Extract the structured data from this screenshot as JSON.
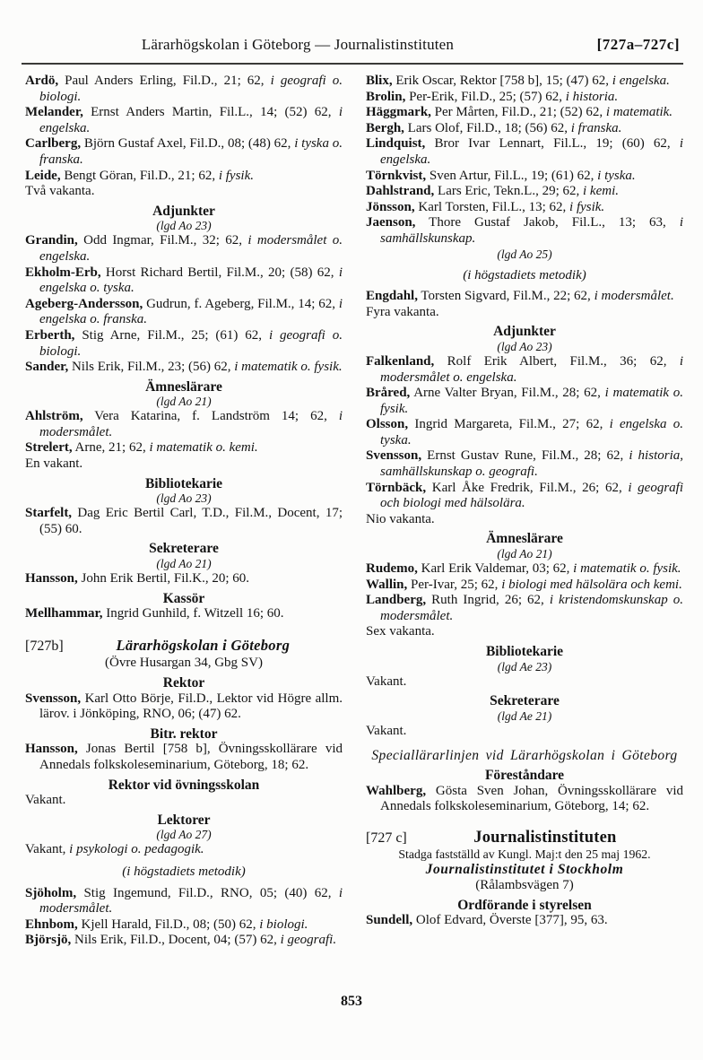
{
  "page": {
    "header": {
      "title": "Lärarhögskolan i Göteborg — Journalistinstituten",
      "ref": "[727a–727c]"
    },
    "page_number": "853"
  },
  "columns": {
    "left": [
      {
        "type": "entry",
        "name": "Ardö,",
        "detail": " Paul Anders Erling, Fil.D., 21; 62, ",
        "subject": "i geografi o. biologi."
      },
      {
        "type": "entry",
        "name": "Melander,",
        "detail": " Ernst Anders Martin, Fil.L., 14; (52) 62, ",
        "subject": "i engelska."
      },
      {
        "type": "entry",
        "name": "Carlberg,",
        "detail": " Björn Gustaf Axel, Fil.D., 08; (48) 62, ",
        "subject": "i tyska o. franska."
      },
      {
        "type": "entry",
        "name": "Leide,",
        "detail": " Bengt Göran, Fil.D., 21; 62, ",
        "subject": "i fysik."
      },
      {
        "type": "plain",
        "text": "Två vakanta."
      },
      {
        "type": "heading",
        "text": "Adjunkter"
      },
      {
        "type": "subheading",
        "text": "(lgd Ao 23)"
      },
      {
        "type": "entry",
        "name": "Grandin,",
        "detail": " Odd Ingmar, Fil.M., 32; 62, ",
        "subject": "i modersmålet o. engelska."
      },
      {
        "type": "entry",
        "name": "Ekholm-Erb,",
        "detail": " Horst Richard Bertil, Fil.M., 20; (58) 62, ",
        "subject": "i engelska o. tyska."
      },
      {
        "type": "entry",
        "name": "Ageberg-Andersson,",
        "detail": " Gudrun, f. Ageberg, Fil.M., 14; 62, ",
        "subject": "i engelska o. franska."
      },
      {
        "type": "entry",
        "name": "Erberth,",
        "detail": " Stig Arne, Fil.M., 25; (61) 62, ",
        "subject": "i geografi o. biologi."
      },
      {
        "type": "entry",
        "name": "Sander,",
        "detail": " Nils Erik, Fil.M., 23; (56) 62, ",
        "subject": "i matematik o. fysik."
      },
      {
        "type": "heading",
        "text": "Ämneslärare"
      },
      {
        "type": "subheading",
        "text": "(lgd Ao 21)"
      },
      {
        "type": "entry",
        "name": "Ahlström,",
        "detail": " Vera Katarina, f. Landström 14; 62, ",
        "subject": "i modersmålet."
      },
      {
        "type": "entry",
        "name": "Strelert,",
        "detail": " Arne, 21; 62, ",
        "subject": "i matematik o. kemi."
      },
      {
        "type": "plain",
        "text": "En vakant."
      },
      {
        "type": "heading",
        "text": "Bibliotekarie"
      },
      {
        "type": "subheading",
        "text": "(lgd Ao 23)"
      },
      {
        "type": "entry",
        "name": "Starfelt,",
        "detail": " Dag Eric Bertil Carl, T.D., Fil.M., Docent, 17; (55) 60.",
        "subject": ""
      },
      {
        "type": "heading",
        "text": "Sekreterare"
      },
      {
        "type": "subheading",
        "text": "(lgd Ao 21)"
      },
      {
        "type": "entry",
        "name": "Hansson,",
        "detail": " John Erik Bertil, Fil.K., 20; 60.",
        "subject": ""
      },
      {
        "type": "heading",
        "text": "Kassör"
      },
      {
        "type": "entry",
        "name": "Mellhammar,",
        "detail": " Ingrid Gunhild, f. Witzell 16; 60.",
        "subject": ""
      },
      {
        "type": "section",
        "ref": "[727b]",
        "title": "Lärarhögskolan i Göteborg",
        "style": "italic"
      },
      {
        "type": "center",
        "text": "(Övre Husargan 34, Gbg SV)"
      },
      {
        "type": "heading",
        "text": "Rektor"
      },
      {
        "type": "entry",
        "name": "Svensson,",
        "detail": " Karl Otto Börje, Fil.D., Lektor vid Högre allm. lärov. i Jönköping, RNO, 06; (47) 62.",
        "subject": ""
      },
      {
        "type": "heading",
        "text": "Bitr. rektor"
      },
      {
        "type": "entry",
        "name": "Hansson,",
        "detail": " Jonas Bertil [758 b], Övningsskollärare vid Annedals folkskoleseminarium, Göteborg, 18; 62.",
        "subject": ""
      },
      {
        "type": "heading",
        "text": "Rektor vid övningsskolan"
      },
      {
        "type": "plain",
        "text": "Vakant."
      },
      {
        "type": "heading",
        "text": "Lektorer"
      },
      {
        "type": "subheading",
        "text": "(lgd Ao 27)"
      },
      {
        "type": "entry",
        "name": "",
        "detail": "Vakant, ",
        "subject": "i psykologi o. pedagogik."
      },
      {
        "type": "center-italic",
        "text": "(i högstadiets metodik)"
      },
      {
        "type": "entry",
        "name": "Sjöholm,",
        "detail": " Stig Ingemund, Fil.D., RNO, 05; (40) 62, ",
        "subject": "i modersmålet."
      },
      {
        "type": "entry",
        "name": "Ehnbom,",
        "detail": " Kjell Harald, Fil.D., 08; (50) 62, ",
        "subject": "i biologi."
      },
      {
        "type": "entry",
        "name": "Björsjö,",
        "detail": " Nils Erik, Fil.D., Docent, 04; (57) 62, ",
        "subject": "i geografi."
      }
    ],
    "right": [
      {
        "type": "entry",
        "name": "Blix,",
        "detail": " Erik Oscar, Rektor [758 b], 15; (47) 62, ",
        "subject": "i engelska."
      },
      {
        "type": "entry",
        "name": "Brolin,",
        "detail": " Per-Erik, Fil.D., 25; (57) 62, ",
        "subject": "i historia."
      },
      {
        "type": "entry",
        "name": "Häggmark,",
        "detail": " Per Mårten, Fil.D., 21; (52) 62, ",
        "subject": "i matematik."
      },
      {
        "type": "entry",
        "name": "Bergh,",
        "detail": " Lars Olof, Fil.D., 18; (56) 62, ",
        "subject": "i franska."
      },
      {
        "type": "entry",
        "name": "Lindquist,",
        "detail": " Bror Ivar Lennart, Fil.L., 19; (60) 62, ",
        "subject": "i engelska."
      },
      {
        "type": "entry",
        "name": "Törnkvist,",
        "detail": " Sven Artur, Fil.L., 19; (61) 62, ",
        "subject": "i tyska."
      },
      {
        "type": "entry",
        "name": "Dahlstrand,",
        "detail": " Lars Eric, Tekn.L., 29; 62, ",
        "subject": "i kemi."
      },
      {
        "type": "entry",
        "name": "Jönsson,",
        "detail": " Karl Torsten, Fil.L., 13; 62, ",
        "subject": "i fysik."
      },
      {
        "type": "entry",
        "name": "Jaenson,",
        "detail": " Thore Gustaf Jakob, Fil.L., 13; 63, ",
        "subject": "i samhällskunskap."
      },
      {
        "type": "subheading",
        "text": "(lgd Ao 25)"
      },
      {
        "type": "center-italic",
        "text": "(i högstadiets metodik)"
      },
      {
        "type": "entry",
        "name": "Engdahl,",
        "detail": " Torsten Sigvard, Fil.M., 22; 62, ",
        "subject": "i modersmålet."
      },
      {
        "type": "plain",
        "text": "Fyra vakanta."
      },
      {
        "type": "heading",
        "text": "Adjunkter"
      },
      {
        "type": "subheading",
        "text": "(lgd Ao 23)"
      },
      {
        "type": "entry",
        "name": "Falkenland,",
        "detail": " Rolf Erik Albert, Fil.M., 36; 62, ",
        "subject": "i modersmålet o. engelska."
      },
      {
        "type": "entry",
        "name": "Bråred,",
        "detail": " Arne Valter Bryan, Fil.M., 28; 62, ",
        "subject": "i matematik o. fysik."
      },
      {
        "type": "entry",
        "name": "Olsson,",
        "detail": " Ingrid Margareta, Fil.M., 27; 62, ",
        "subject": "i engelska o. tyska."
      },
      {
        "type": "entry",
        "name": "Svensson,",
        "detail": " Ernst Gustav Rune, Fil.M., 28; 62, ",
        "subject": "i historia, samhällskunskap o. geografi."
      },
      {
        "type": "entry",
        "name": "Törnbäck,",
        "detail": " Karl Åke Fredrik, Fil.M., 26; 62, ",
        "subject": "i geografi och biologi med hälsolära."
      },
      {
        "type": "plain",
        "text": "Nio vakanta."
      },
      {
        "type": "heading",
        "text": "Ämneslärare"
      },
      {
        "type": "subheading",
        "text": "(lgd Ao 21)"
      },
      {
        "type": "entry",
        "name": "Rudemo,",
        "detail": " Karl Erik Valdemar, 03; 62, ",
        "subject": "i matematik o. fysik."
      },
      {
        "type": "entry",
        "name": "Wallin,",
        "detail": " Per-Ivar, 25; 62, ",
        "subject": "i biologi med hälsolära och kemi."
      },
      {
        "type": "entry",
        "name": "Landberg,",
        "detail": " Ruth Ingrid, 26; 62, ",
        "subject": "i kristendomskunskap o. modersmålet."
      },
      {
        "type": "plain",
        "text": "Sex vakanta."
      },
      {
        "type": "heading",
        "text": "Bibliotekarie"
      },
      {
        "type": "subheading",
        "text": "(lgd Ae 23)"
      },
      {
        "type": "plain",
        "text": "Vakant."
      },
      {
        "type": "heading",
        "text": "Sekreterare"
      },
      {
        "type": "subheading",
        "text": "(lgd Ae 21)"
      },
      {
        "type": "plain",
        "text": "Vakant."
      },
      {
        "type": "wide-italic",
        "text": "Speciallärarlinjen vid Lärarhögskolan i Göteborg"
      },
      {
        "type": "heading",
        "text": "Föreståndare"
      },
      {
        "type": "entry",
        "name": "Wahlberg,",
        "detail": " Gösta Sven Johan, Övningsskollärare vid Annedals folkskoleseminarium, Göteborg, 14; 62.",
        "subject": ""
      },
      {
        "type": "section",
        "ref": "[727 c]",
        "title": "Journalistinstituten",
        "style": "big"
      },
      {
        "type": "center-small",
        "text": "Stadga fastställd av Kungl. Maj:t den 25 maj 1962."
      },
      {
        "type": "center-bold-italic",
        "text": "Journalistinstitutet i Stockholm"
      },
      {
        "type": "center",
        "text": "(Rålambsvägen 7)"
      },
      {
        "type": "heading",
        "text": "Ordförande i styrelsen"
      },
      {
        "type": "entry",
        "name": "Sundell,",
        "detail": " Olof Edvard, Överste [377], 95, 63.",
        "subject": ""
      }
    ]
  }
}
